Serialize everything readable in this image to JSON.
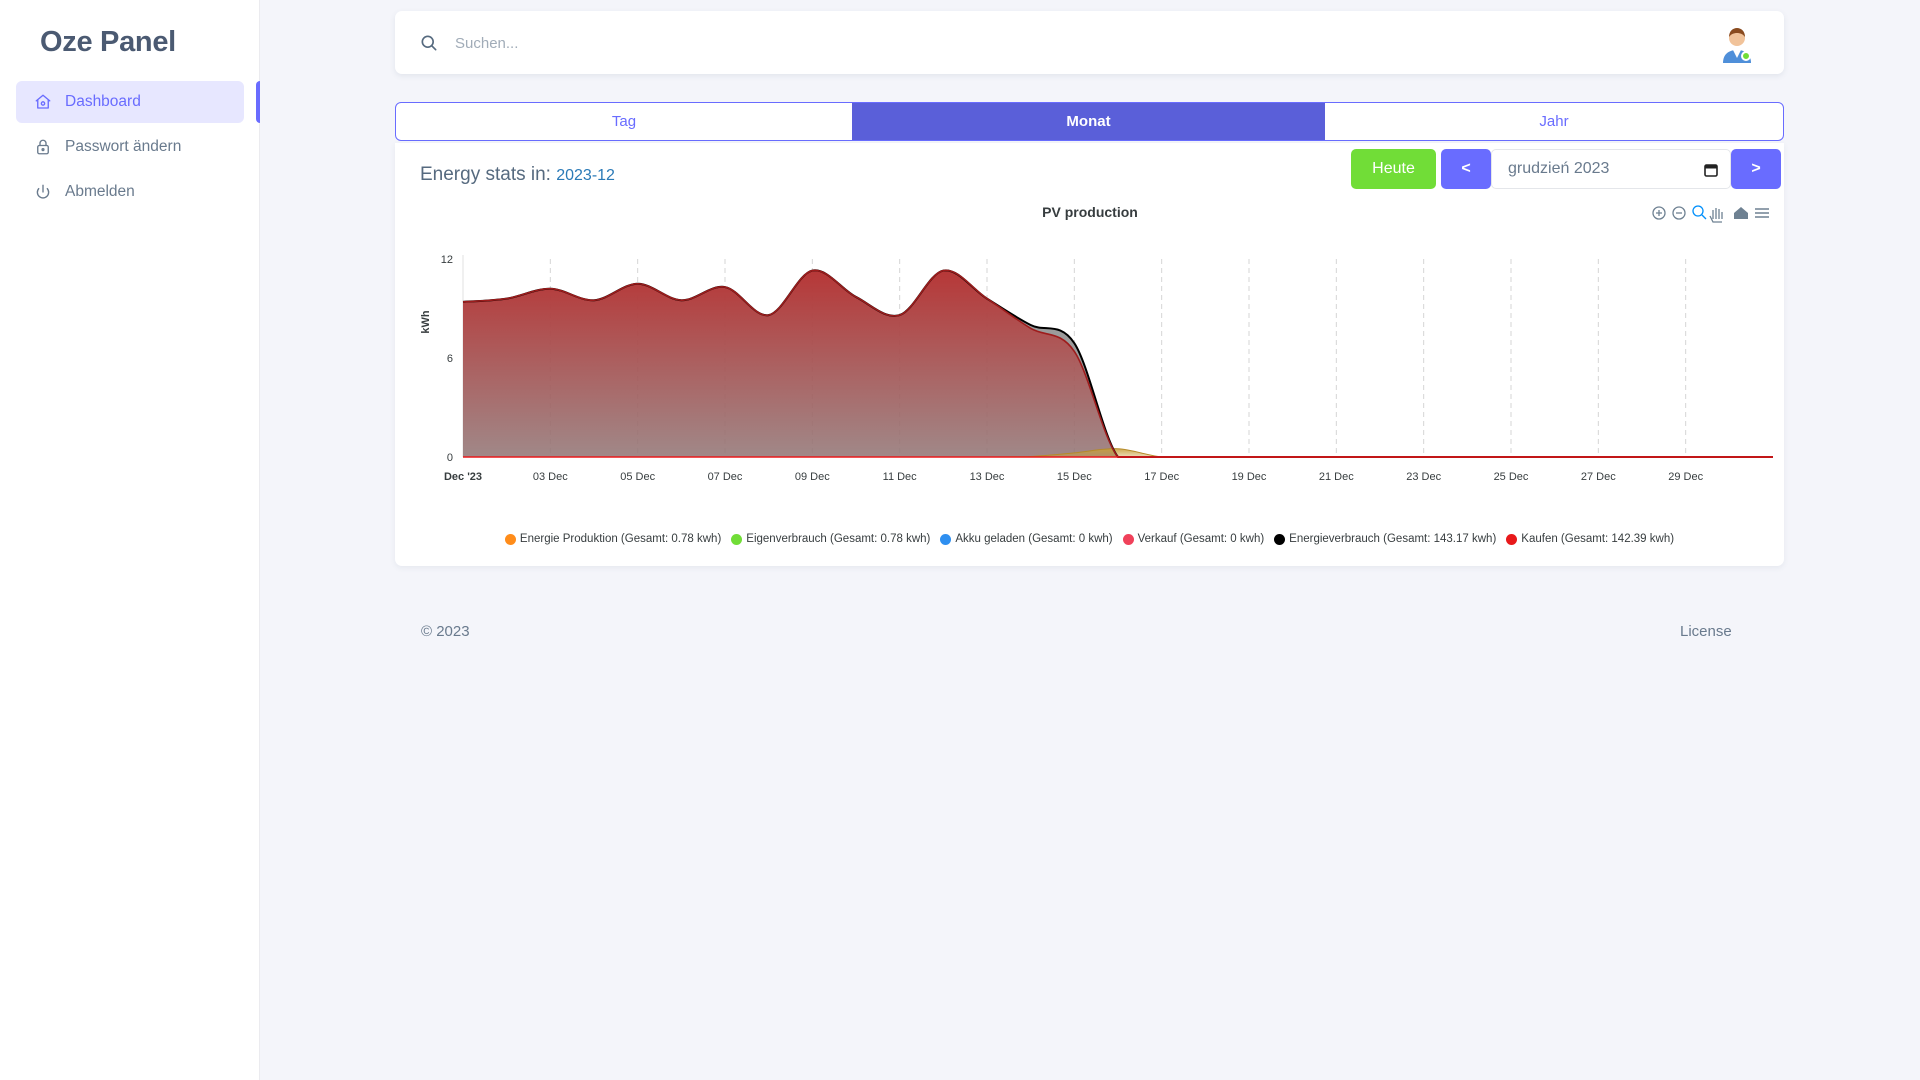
{
  "brand": {
    "name": "Oze Panel"
  },
  "sidebar": {
    "items": [
      {
        "label": "Dashboard",
        "icon": "home-icon",
        "active": true
      },
      {
        "label": "Passwort ändern",
        "icon": "lock-icon",
        "active": false
      },
      {
        "label": "Abmelden",
        "icon": "power-icon",
        "active": false
      }
    ]
  },
  "search": {
    "placeholder": "Suchen..."
  },
  "user": {
    "status": "online",
    "status_color": "#71dd37"
  },
  "tabs": [
    {
      "label": "Tag",
      "active": false
    },
    {
      "label": "Monat",
      "active": true
    },
    {
      "label": "Jahr",
      "active": false
    }
  ],
  "stats": {
    "title_prefix": "Energy stats in:",
    "period": "2023-12",
    "today_label": "Heute",
    "prev_label": "<",
    "next_label": ">",
    "date_value": "grudzień 2023"
  },
  "colors": {
    "accent": "#696cff",
    "success": "#71dd37",
    "kaufen": "#c0392b",
    "energieverbrauch": "#000000"
  },
  "chart_data": {
    "type": "area",
    "title": "PV production",
    "ylabel": "kWh",
    "ylim": [
      0,
      12
    ],
    "yticks": [
      0,
      6,
      12
    ],
    "grid": true,
    "legend_position": "bottom",
    "x_tick_labels": [
      "Dec '23",
      "03 Dec",
      "05 Dec",
      "07 Dec",
      "09 Dec",
      "11 Dec",
      "13 Dec",
      "15 Dec",
      "17 Dec",
      "19 Dec",
      "21 Dec",
      "23 Dec",
      "25 Dec",
      "27 Dec",
      "29 Dec"
    ],
    "x_days": [
      1,
      2,
      3,
      4,
      5,
      6,
      7,
      8,
      9,
      10,
      11,
      12,
      13,
      14,
      15,
      16,
      17,
      18,
      19,
      20,
      21,
      22,
      23,
      24,
      25,
      26,
      27,
      28,
      29,
      30,
      31
    ],
    "series": [
      {
        "name": "Energie Produktion (Gesamt: 0.78 kwh)",
        "color": "#ff8c1a",
        "values": [
          0,
          0,
          0,
          0,
          0,
          0,
          0,
          0,
          0,
          0,
          0,
          0,
          0,
          0.03,
          0.25,
          0.5,
          0,
          0,
          0,
          0,
          0,
          0,
          0,
          0,
          0,
          0,
          0,
          0,
          0,
          0,
          0
        ]
      },
      {
        "name": "Eigenverbrauch (Gesamt: 0.78 kwh)",
        "color": "#71dd37",
        "values": [
          0,
          0,
          0,
          0,
          0,
          0,
          0,
          0,
          0,
          0,
          0,
          0,
          0,
          0.03,
          0.25,
          0.5,
          0,
          0,
          0,
          0,
          0,
          0,
          0,
          0,
          0,
          0,
          0,
          0,
          0,
          0,
          0
        ]
      },
      {
        "name": "Akku geladen (Gesamt: 0 kwh)",
        "color": "#2e8ff0",
        "values": [
          0,
          0,
          0,
          0,
          0,
          0,
          0,
          0,
          0,
          0,
          0,
          0,
          0,
          0,
          0,
          0,
          0,
          0,
          0,
          0,
          0,
          0,
          0,
          0,
          0,
          0,
          0,
          0,
          0,
          0,
          0
        ]
      },
      {
        "name": "Verkauf (Gesamt: 0 kwh)",
        "color": "#f0415a",
        "values": [
          0,
          0,
          0,
          0,
          0,
          0,
          0,
          0,
          0,
          0,
          0,
          0,
          0,
          0,
          0,
          0,
          0,
          0,
          0,
          0,
          0,
          0,
          0,
          0,
          0,
          0,
          0,
          0,
          0,
          0,
          0
        ]
      },
      {
        "name": "Energieverbrauch (Gesamt: 143.17 kwh)",
        "color": "#000000",
        "values": [
          9.4,
          9.6,
          10.2,
          9.5,
          10.5,
          9.5,
          10.3,
          8.6,
          11.3,
          9.7,
          8.6,
          11.3,
          9.6,
          8,
          6.9,
          0,
          0,
          0,
          0,
          0,
          0,
          0,
          0,
          0,
          0,
          0,
          0,
          0,
          0,
          0,
          0
        ]
      },
      {
        "name": "Kaufen (Gesamt: 142.39 kwh)",
        "color": "#e8191b",
        "values": [
          9.4,
          9.6,
          10.2,
          9.5,
          10.5,
          9.5,
          10.3,
          8.6,
          11.3,
          9.7,
          8.6,
          11.3,
          9.6,
          7.8,
          6.4,
          0,
          0,
          0,
          0,
          0,
          0,
          0,
          0,
          0,
          0,
          0,
          0,
          0,
          0,
          0,
          0
        ]
      }
    ]
  },
  "footer": {
    "copyright": "© 2023",
    "license": "License"
  }
}
